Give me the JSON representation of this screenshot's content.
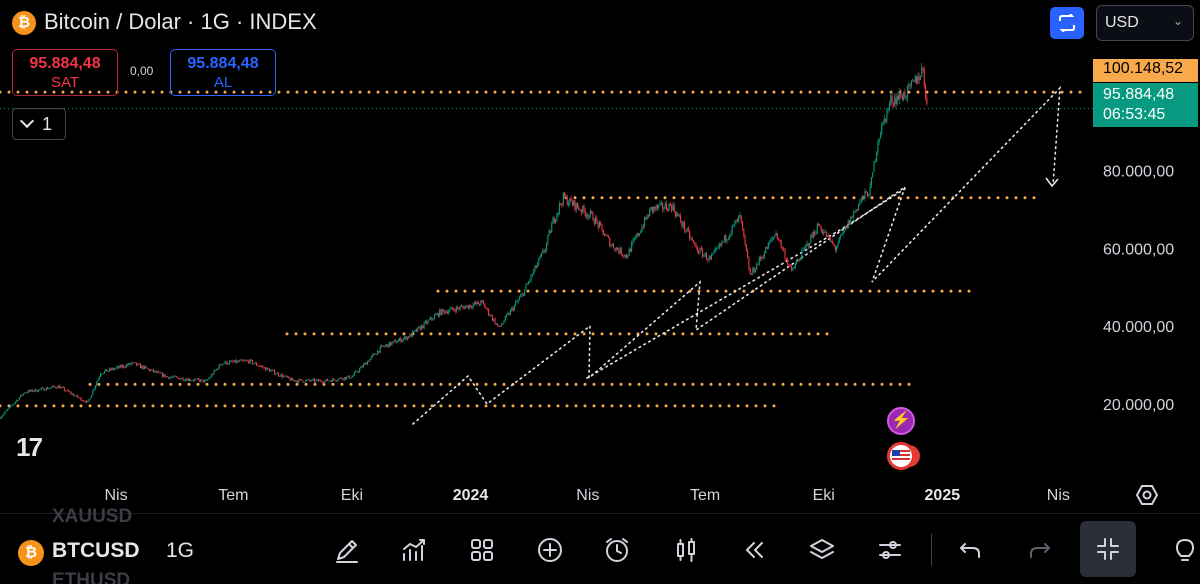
{
  "header": {
    "coin_glyph": "₿",
    "title": "Bitcoin / Dolar · 1G · INDEX",
    "compare_icon": "compare-icon",
    "currency": "USD"
  },
  "trade": {
    "sell_price": "95.884,48",
    "sell_label": "SAT",
    "spread": "0,00",
    "buy_price": "95.884,48",
    "buy_label": "AL"
  },
  "interval_toggle": {
    "count": "1"
  },
  "logo_text": "17",
  "price_tags": {
    "high": "100.148,52",
    "last": "95.884,48",
    "countdown": "06:53:45"
  },
  "events": {
    "bolt_glyph": "⚡"
  },
  "colors": {
    "up": "#089981",
    "down": "#f23645",
    "level": "#f7a94b",
    "accent": "#2962ff"
  },
  "chart_data": {
    "type": "candlestick",
    "symbol": "BTCUSD",
    "currency": "USD",
    "y_axis_labels": [
      "80.000,00",
      "60.000,00",
      "40.000,00",
      "20.000,00"
    ],
    "y_ticks": [
      80000,
      60000,
      40000,
      20000
    ],
    "ylim": [
      3000,
      112000
    ],
    "x_axis_labels": [
      "Nis",
      "Tem",
      "Eki",
      "2024",
      "Nis",
      "Tem",
      "Eki",
      "2025",
      "Nis"
    ],
    "x_ticks": [
      "2023-04-01",
      "2023-07-01",
      "2023-10-01",
      "2024-01-01",
      "2024-04-01",
      "2024-07-01",
      "2024-10-01",
      "2025-01-01",
      "2025-04-01"
    ],
    "xlim": [
      "2023-01-01",
      "2025-04-24"
    ],
    "series": [
      {
        "x": [
          "2023-01-01",
          "2023-01-20",
          "2023-02-15",
          "2023-03-10",
          "2023-03-20",
          "2023-04-14",
          "2023-05-10",
          "2023-06-10",
          "2023-06-22",
          "2023-07-13",
          "2023-08-16",
          "2023-09-10",
          "2023-10-01",
          "2023-10-24",
          "2023-11-15",
          "2023-12-08",
          "2024-01-10",
          "2024-01-23",
          "2024-02-10",
          "2024-02-28",
          "2024-03-05",
          "2024-03-13",
          "2024-04-05",
          "2024-04-19",
          "2024-05-01",
          "2024-05-20",
          "2024-06-05",
          "2024-06-24",
          "2024-07-05",
          "2024-07-28",
          "2024-08-05",
          "2024-08-25",
          "2024-09-06",
          "2024-09-27",
          "2024-10-10",
          "2024-10-29",
          "2024-11-06",
          "2024-11-12",
          "2024-11-22",
          "2024-12-05",
          "2024-12-17",
          "2024-12-20"
        ],
        "close": [
          16500,
          23000,
          24500,
          20300,
          28000,
          30400,
          27000,
          25800,
          30500,
          31000,
          26000,
          25900,
          27000,
          34500,
          37500,
          43500,
          46000,
          39500,
          48000,
          60000,
          67000,
          73000,
          68000,
          61000,
          58000,
          70000,
          71000,
          60000,
          57000,
          68000,
          53000,
          64000,
          54000,
          66000,
          60000,
          72000,
          75000,
          88000,
          98000,
          100000,
          106000,
          97000
        ]
      }
    ],
    "levels": [
      100148.52,
      73000,
      49000,
      38000,
      25000,
      19500
    ],
    "last_price": 95884.48,
    "high_price": 100148.52
  },
  "toolbar": {
    "ghost_top": "XAUUSD",
    "coin_glyph": "₿",
    "symbol": "BTCUSD",
    "interval": "1G",
    "ghost_bottom": "ETHUSD"
  }
}
